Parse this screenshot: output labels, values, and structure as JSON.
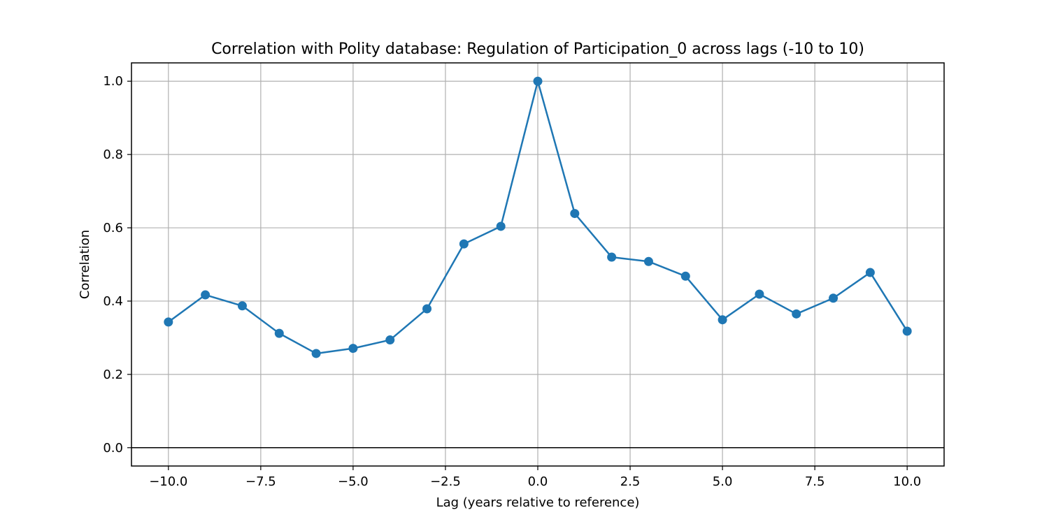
{
  "chart_data": {
    "type": "line",
    "title": "Correlation with Polity database: Regulation of Participation_0 across lags (-10 to 10)",
    "xlabel": "Lag (years relative to reference)",
    "ylabel": "Correlation",
    "xlim": [
      -11,
      11
    ],
    "ylim": [
      -0.05,
      1.05
    ],
    "xticks": [
      -10.0,
      -7.5,
      -5.0,
      -2.5,
      0.0,
      2.5,
      5.0,
      7.5,
      10.0
    ],
    "xtick_labels": [
      "−10.0",
      "−7.5",
      "−5.0",
      "−2.5",
      "0.0",
      "2.5",
      "5.0",
      "7.5",
      "10.0"
    ],
    "yticks": [
      0.0,
      0.2,
      0.4,
      0.6,
      0.8,
      1.0
    ],
    "ytick_labels": [
      "0.0",
      "0.2",
      "0.4",
      "0.6",
      "0.8",
      "1.0"
    ],
    "grid": true,
    "reference_line_y": 0.0,
    "series": [
      {
        "name": "Correlation",
        "color": "#1f77b4",
        "marker": "circle",
        "x": [
          -10,
          -9,
          -8,
          -7,
          -6,
          -5,
          -4,
          -3,
          -2,
          -1,
          0,
          1,
          2,
          3,
          4,
          5,
          6,
          7,
          8,
          9,
          10
        ],
        "values": [
          0.343,
          0.417,
          0.387,
          0.312,
          0.257,
          0.271,
          0.294,
          0.379,
          0.556,
          0.604,
          1.0,
          0.639,
          0.52,
          0.508,
          0.468,
          0.349,
          0.419,
          0.365,
          0.408,
          0.478,
          0.318
        ]
      }
    ]
  }
}
